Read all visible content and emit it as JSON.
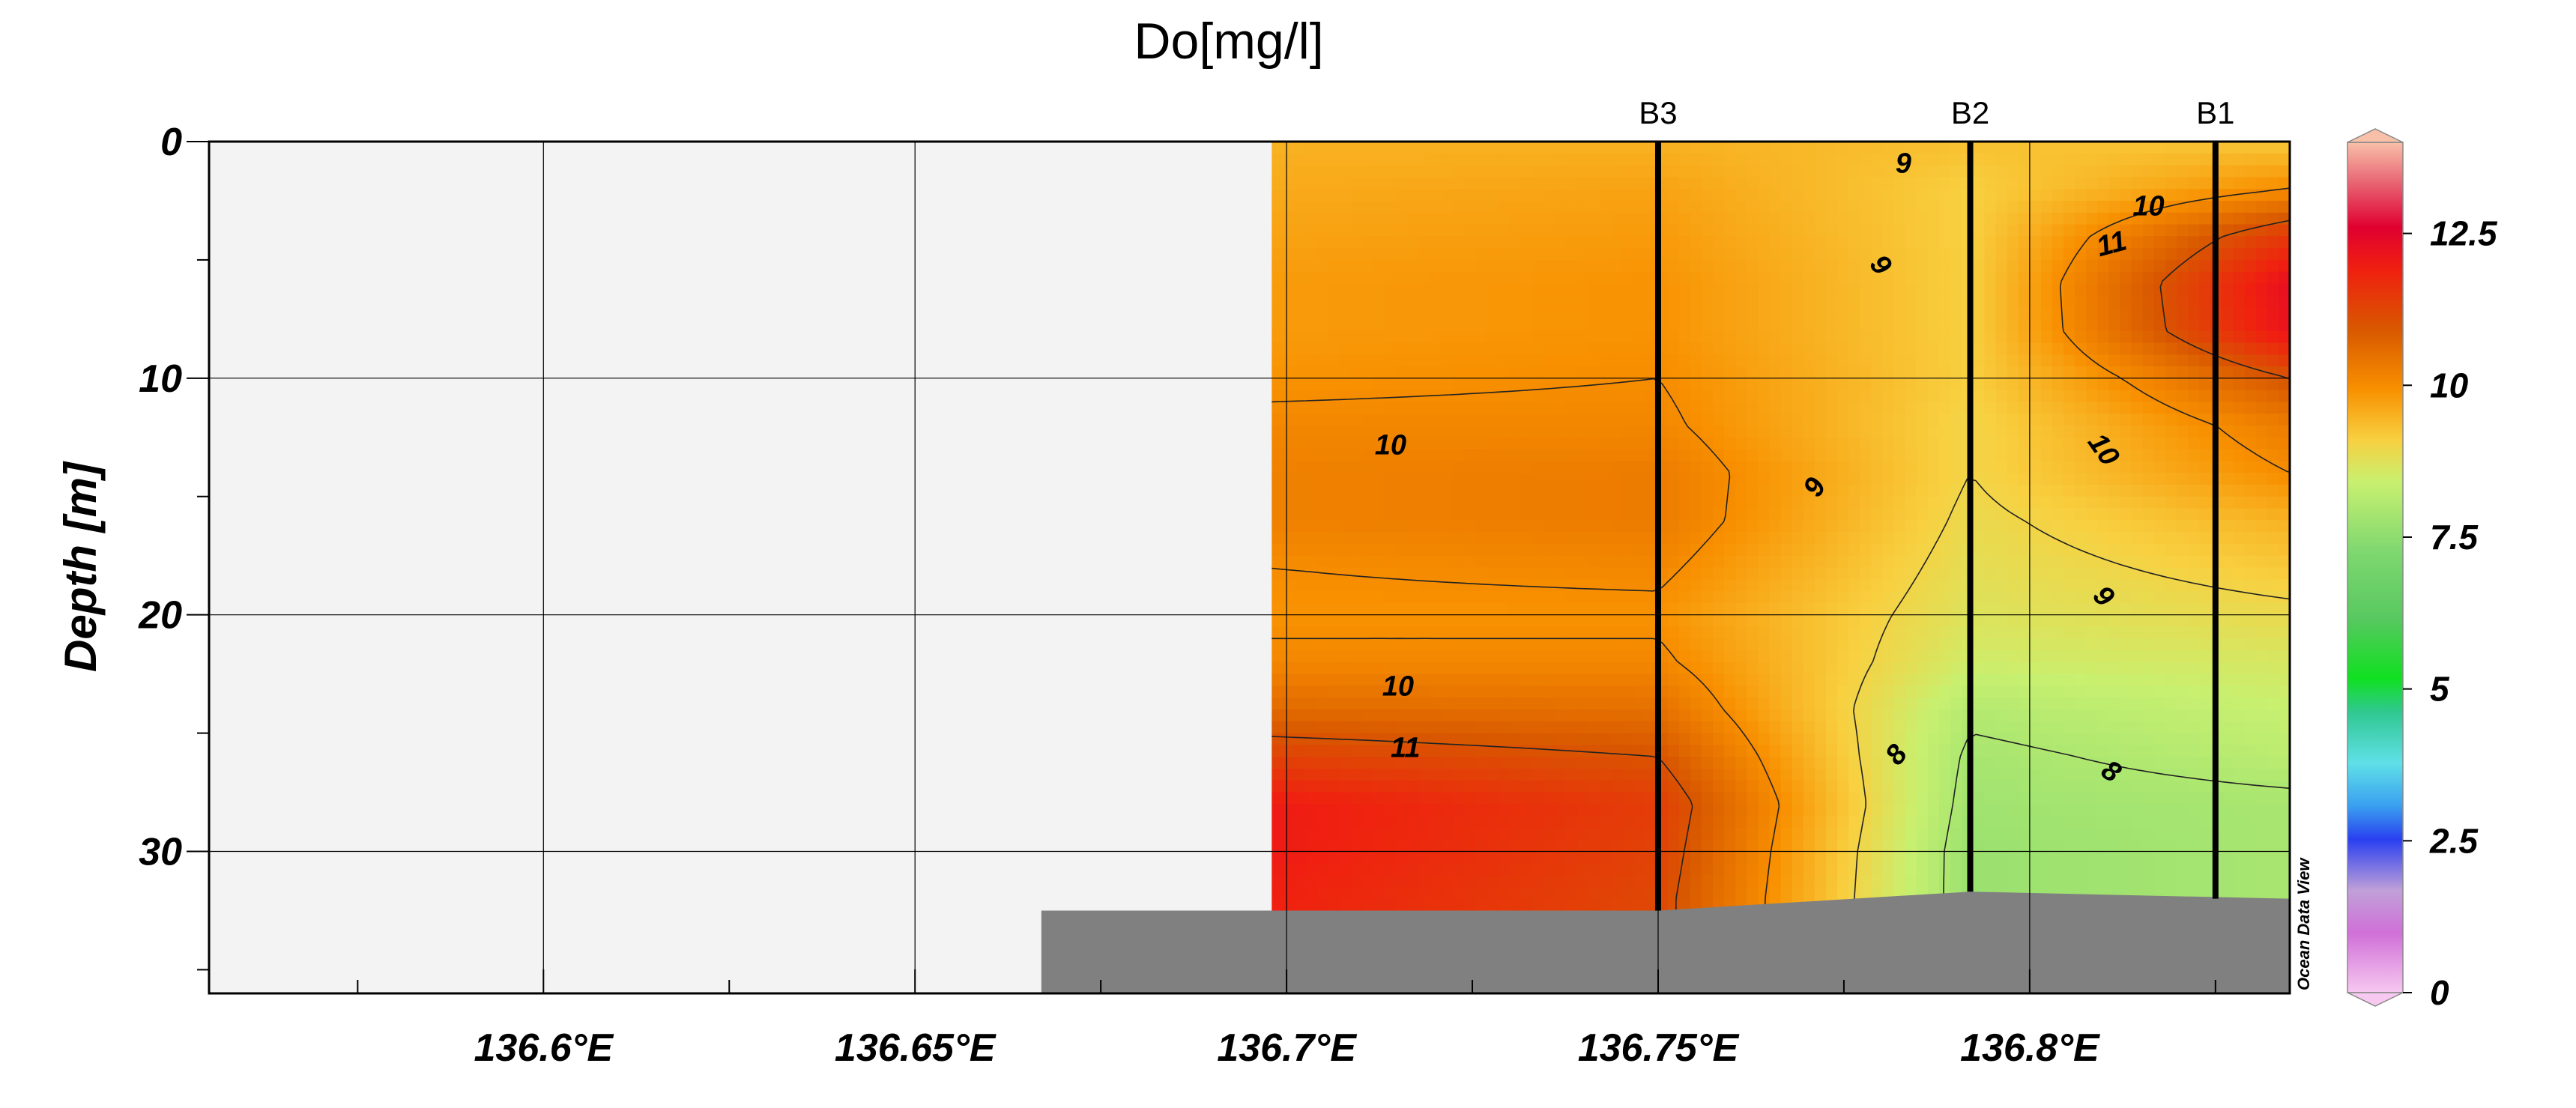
{
  "chart_data": {
    "type": "heatmap",
    "title": "Do[mg/l]",
    "xlabel": "",
    "ylabel": "Depth [m]",
    "xlim": [
      136.555,
      136.835
    ],
    "ylim": [
      36,
      0
    ],
    "x_ticks": [
      136.6,
      136.65,
      136.7,
      136.75,
      136.8
    ],
    "x_tick_labels": [
      "136.6°E",
      "136.65°E",
      "136.7°E",
      "136.75°E",
      "136.8°E"
    ],
    "y_ticks": [
      0,
      10,
      20,
      30
    ],
    "y_tick_labels": [
      "0",
      "10",
      "20",
      "30"
    ],
    "grid": true,
    "stations": [
      {
        "name": "B3",
        "x": 136.75,
        "bottom_depth": 32.5
      },
      {
        "name": "B2",
        "x": 136.792,
        "bottom_depth": 31.7
      },
      {
        "name": "B1",
        "x": 136.825,
        "bottom_depth": 32.0
      }
    ],
    "field": {
      "x": [
        136.698,
        136.75,
        136.792,
        136.835
      ],
      "depths": [
        0,
        2,
        4,
        6,
        8,
        10,
        12,
        14,
        16,
        18,
        20,
        22,
        24,
        26,
        28,
        30,
        32
      ],
      "values": [
        [
          9.5,
          9.5,
          9.3,
          9.2
        ],
        [
          9.6,
          9.7,
          9.1,
          10.0
        ],
        [
          9.7,
          9.8,
          9.1,
          11.5
        ],
        [
          9.8,
          9.9,
          9.1,
          12.3
        ],
        [
          9.8,
          9.9,
          9.1,
          12.2
        ],
        [
          9.9,
          10.0,
          9.1,
          11.0
        ],
        [
          10.1,
          10.1,
          9.0,
          10.3
        ],
        [
          10.2,
          10.3,
          9.0,
          10.0
        ],
        [
          10.2,
          10.3,
          8.9,
          9.5
        ],
        [
          10.0,
          10.1,
          8.8,
          9.2
        ],
        [
          9.9,
          9.9,
          8.7,
          8.9
        ],
        [
          10.1,
          10.1,
          8.5,
          8.6
        ],
        [
          10.6,
          10.5,
          8.1,
          8.4
        ],
        [
          11.3,
          11.0,
          7.9,
          8.2
        ],
        [
          12.0,
          11.4,
          7.8,
          7.9
        ],
        [
          12.0,
          11.3,
          7.7,
          7.9
        ],
        [
          11.9,
          11.2,
          7.7,
          7.9
        ]
      ]
    },
    "contour_labels": [
      {
        "text": "9",
        "x": 136.783,
        "y": 0.9,
        "angle": 0
      },
      {
        "text": "10",
        "x": 136.816,
        "y": 2.7,
        "angle": 0
      },
      {
        "text": "11",
        "x": 136.811,
        "y": 4.3,
        "angle": -15
      },
      {
        "text": "9",
        "x": 136.78,
        "y": 5.2,
        "angle": 50
      },
      {
        "text": "10",
        "x": 136.714,
        "y": 12.8,
        "angle": 0
      },
      {
        "text": "10",
        "x": 136.81,
        "y": 13.0,
        "angle": 55
      },
      {
        "text": "9",
        "x": 136.771,
        "y": 14.6,
        "angle": -60
      },
      {
        "text": "9",
        "x": 136.81,
        "y": 19.2,
        "angle": 45
      },
      {
        "text": "10",
        "x": 136.715,
        "y": 23.0,
        "angle": 0
      },
      {
        "text": "11",
        "x": 136.716,
        "y": 25.6,
        "angle": 0
      },
      {
        "text": "8",
        "x": 136.782,
        "y": 25.9,
        "angle": -50
      },
      {
        "text": "8",
        "x": 136.811,
        "y": 26.6,
        "angle": 35
      }
    ],
    "colorbar": {
      "min": 0,
      "max": 14,
      "ticks": [
        0,
        2.5,
        5,
        7.5,
        10,
        12.5
      ],
      "tick_labels": [
        "0",
        "2.5",
        "5",
        "7.5",
        "10",
        "12.5"
      ],
      "placement": "right"
    }
  },
  "colors": {
    "land": "#f3f3f3",
    "seafloor": "#808080",
    "grid": "#000000",
    "station_line": "#000000"
  },
  "watermark": "Ocean Data View"
}
